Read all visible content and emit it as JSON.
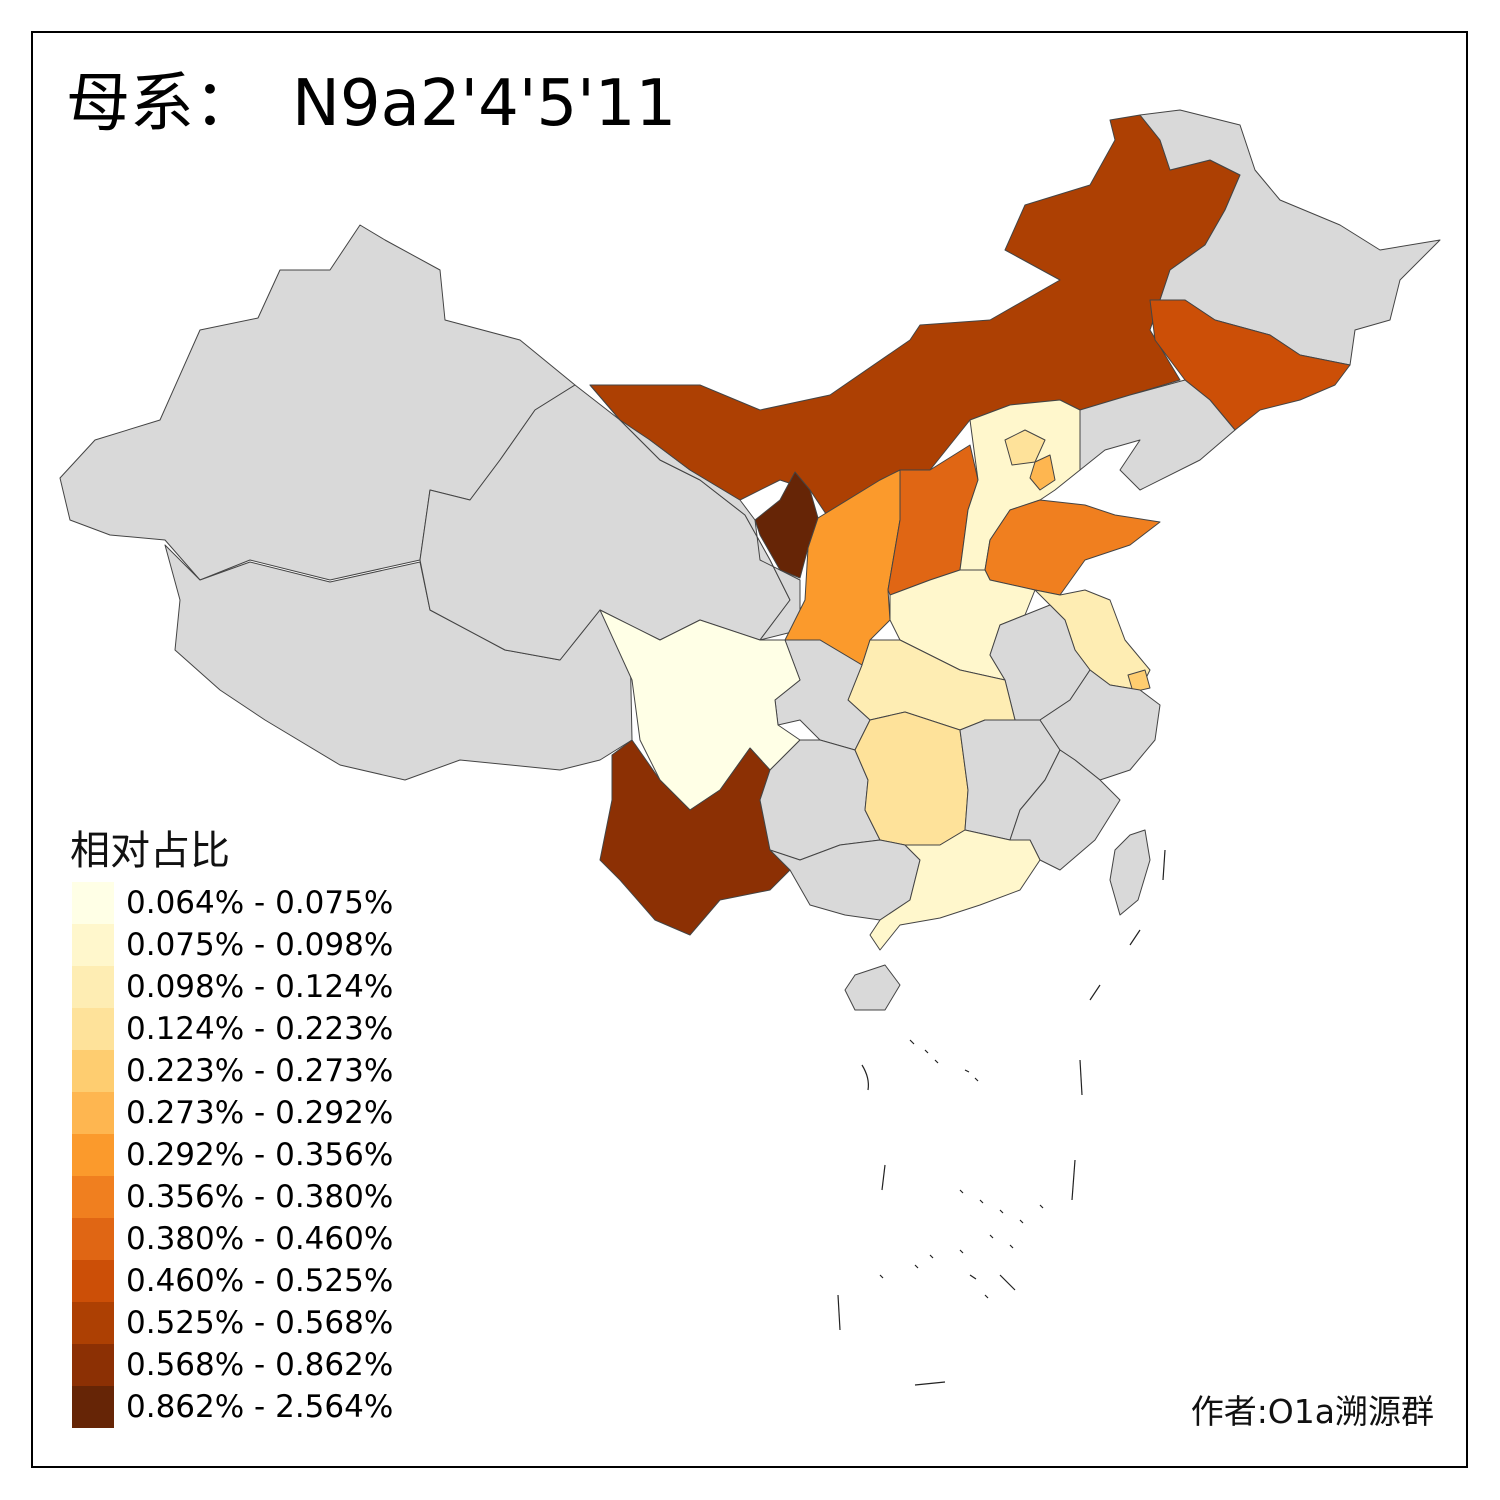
{
  "title": {
    "prefix": "母系：",
    "haplogroup": "N9a2'4'5'11"
  },
  "legend": {
    "title": "相对占比",
    "bins": [
      {
        "label": "0.064% - 0.075%",
        "color": "#ffffe6"
      },
      {
        "label": "0.075% - 0.098%",
        "color": "#fff7cc"
      },
      {
        "label": "0.098% - 0.124%",
        "color": "#feedb3"
      },
      {
        "label": "0.124% - 0.223%",
        "color": "#fee29a"
      },
      {
        "label": "0.223% - 0.273%",
        "color": "#fecd70"
      },
      {
        "label": "0.273% - 0.292%",
        "color": "#feb650"
      },
      {
        "label": "0.292% - 0.356%",
        "color": "#fb9a2c"
      },
      {
        "label": "0.356% - 0.380%",
        "color": "#f07f1f"
      },
      {
        "label": "0.380% - 0.460%",
        "color": "#e06614"
      },
      {
        "label": "0.460% - 0.525%",
        "color": "#cc4f07"
      },
      {
        "label": "0.525% - 0.568%",
        "color": "#ad4003"
      },
      {
        "label": "0.568% - 0.862%",
        "color": "#8c3004"
      },
      {
        "label": "0.862% - 2.564%",
        "color": "#662506"
      }
    ]
  },
  "no_data_color": "#d9d9d9",
  "author": "作者:O1a溯源群"
}
